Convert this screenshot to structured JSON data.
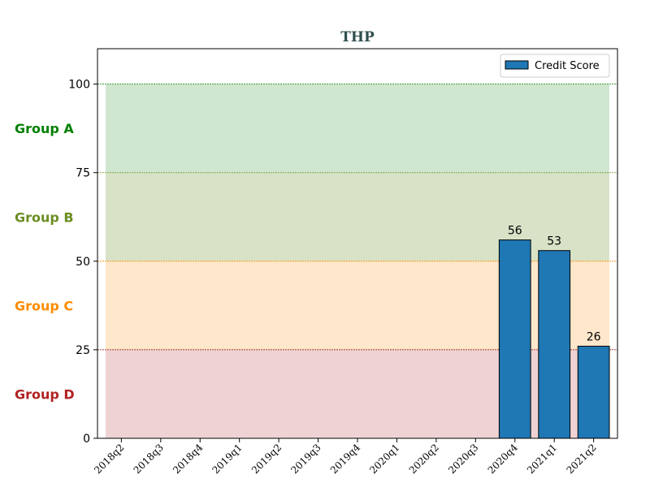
{
  "chart_data": {
    "type": "bar",
    "title": "THP",
    "title_color": "#2f4f4f",
    "xlabel": "",
    "ylabel": "",
    "ylim": [
      0,
      110
    ],
    "yticks": [
      0,
      25,
      50,
      75,
      100
    ],
    "categories": [
      "2018q2",
      "2018q3",
      "2018q4",
      "2019q1",
      "2019q2",
      "2019q3",
      "2019q4",
      "2020q1",
      "2020q2",
      "2020q3",
      "2020q4",
      "2021q1",
      "2021q2"
    ],
    "series": [
      {
        "name": "Credit Score",
        "color": "#1f77b4",
        "values": [
          null,
          null,
          null,
          null,
          null,
          null,
          null,
          null,
          null,
          null,
          56,
          53,
          26
        ]
      }
    ],
    "bands": [
      {
        "label": "Group A",
        "from": 75,
        "to": 100,
        "fill": "#cfe6cf",
        "label_color": "#008000",
        "line_color": "#008000"
      },
      {
        "label": "Group B",
        "from": 50,
        "to": 75,
        "fill": "#d8e2c7",
        "label_color": "#6b8e23",
        "line_color": "#6b8e23"
      },
      {
        "label": "Group C",
        "from": 25,
        "to": 50,
        "fill": "#fee7ca",
        "label_color": "#ff8c00",
        "line_color": "#ff8c00"
      },
      {
        "label": "Group D",
        "from": 0,
        "to": 25,
        "fill": "#efd3d4",
        "label_color": "#b22222",
        "line_color": "#8b0000"
      }
    ],
    "legend": {
      "position": "top-right"
    },
    "grid": false
  }
}
